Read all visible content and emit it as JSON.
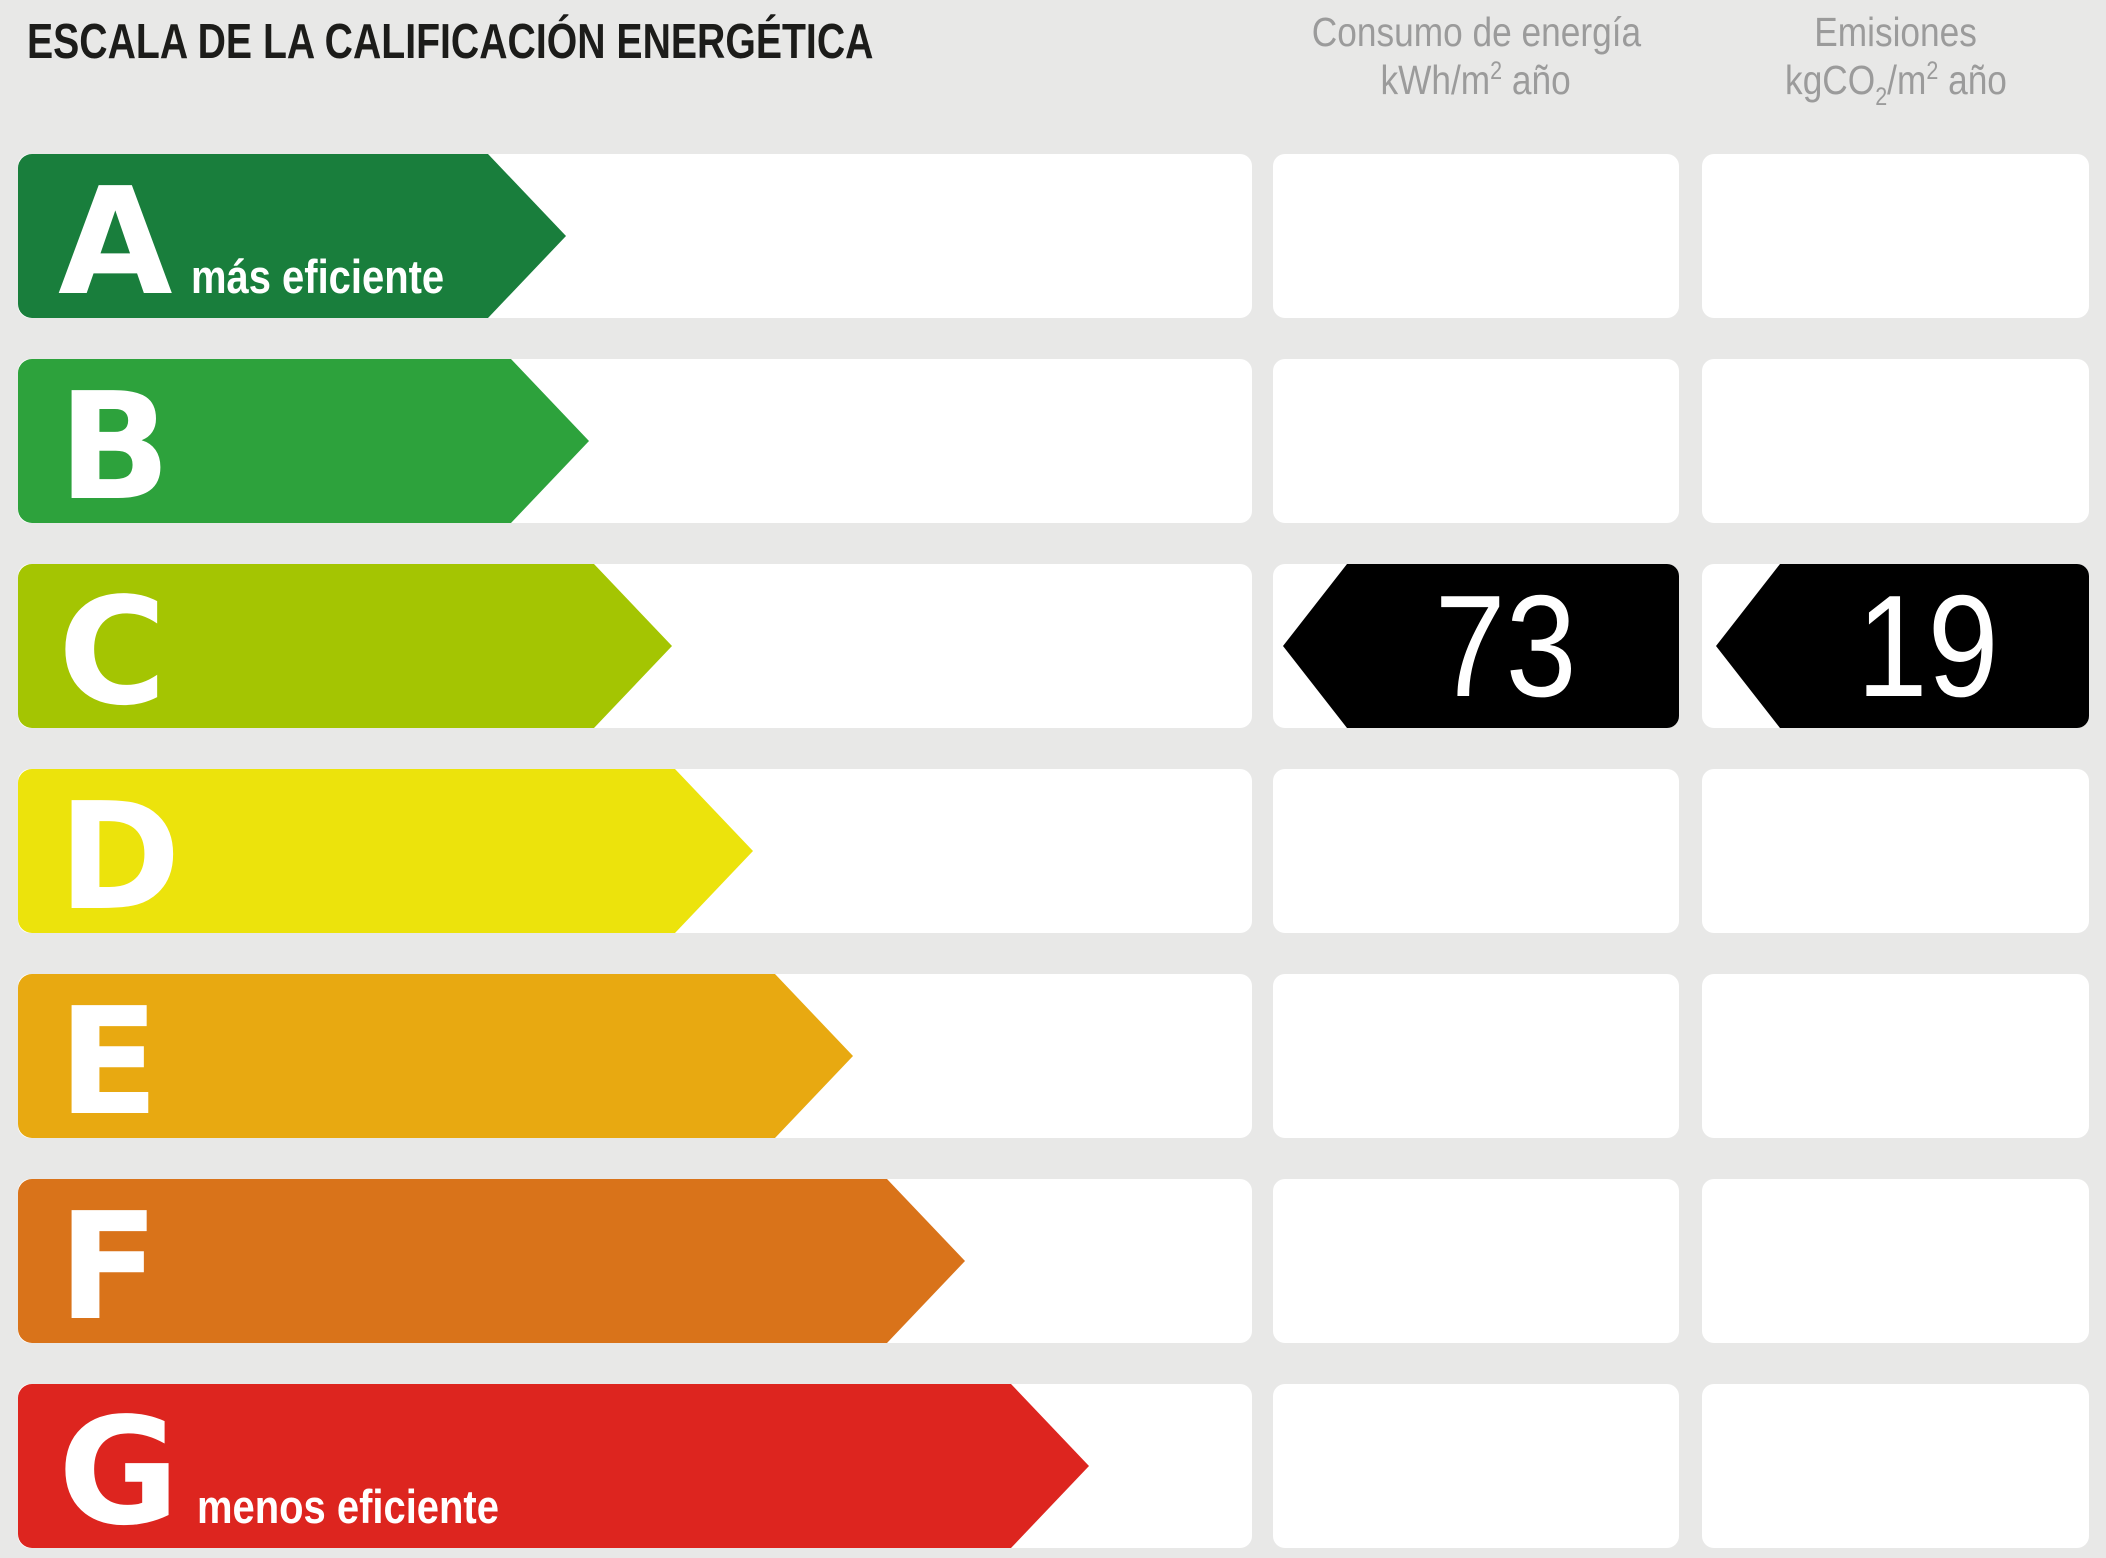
{
  "title": "ESCALA DE LA CALIFICACIÓN ENERGÉTICA",
  "columns": {
    "consumo": {
      "line1": "Consumo de energía",
      "unit": {
        "pre": "kWh/m",
        "sup": "2",
        "post": " año"
      }
    },
    "emisiones": {
      "line1": "Emisiones",
      "unit": {
        "pre": "kgCO",
        "sub": "2",
        "mid": "/m",
        "sup": "2",
        "post": " año"
      }
    }
  },
  "rows": [
    {
      "letter": "A",
      "note": "más eficiente",
      "color": "#197e3c",
      "arrow_len": 536
    },
    {
      "letter": "B",
      "note": "",
      "color": "#2da23c",
      "arrow_len": 571
    },
    {
      "letter": "C",
      "note": "",
      "color": "#a4c502",
      "arrow_len": 654,
      "values": {
        "consumo": "73",
        "emisiones": "19"
      }
    },
    {
      "letter": "D",
      "note": "",
      "color": "#ece30c",
      "arrow_len": 735
    },
    {
      "letter": "E",
      "note": "",
      "color": "#e8a911",
      "arrow_len": 835
    },
    {
      "letter": "F",
      "note": "",
      "color": "#d9731a",
      "arrow_len": 947
    },
    {
      "letter": "G",
      "note": "menos eficiente",
      "color": "#dd251f",
      "arrow_len": 1071
    }
  ],
  "value_arrow_color": "#000000",
  "background_color": "#e8e8e7",
  "header_text_color": "#9b9b9b",
  "chart_data": {
    "type": "bar",
    "orientation": "horizontal",
    "title": "ESCALA DE LA CALIFICACIÓN ENERGÉTICA",
    "categories": [
      "A",
      "B",
      "C",
      "D",
      "E",
      "F",
      "G"
    ],
    "category_notes": {
      "A": "más eficiente",
      "G": "menos eficiente"
    },
    "bar_colors": [
      "#197e3c",
      "#2da23c",
      "#a4c502",
      "#ece30c",
      "#e8a911",
      "#d9731a",
      "#dd251f"
    ],
    "bar_relative_lengths": [
      0.5,
      0.53,
      0.61,
      0.69,
      0.78,
      0.88,
      1.0
    ],
    "columns": [
      {
        "label": "Consumo de energía",
        "unit": "kWh/m² año",
        "value": 73,
        "rating": "C"
      },
      {
        "label": "Emisiones",
        "unit": "kgCO₂/m² año",
        "value": 19,
        "rating": "C"
      }
    ],
    "legend_position": "none",
    "grid": false
  }
}
